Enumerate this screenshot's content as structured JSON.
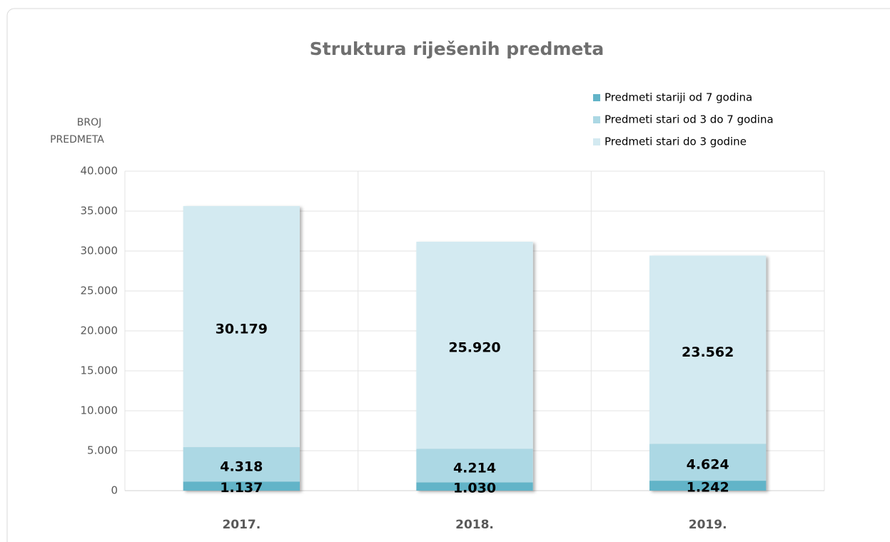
{
  "chart_data": {
    "type": "stacked_bar",
    "title": "Struktura riješenih  predmeta",
    "y_label": [
      "BROJ",
      "PREDMETA"
    ],
    "categories": [
      "2017.",
      "2018.",
      "2019."
    ],
    "series": [
      {
        "name": "Predmeti stariji od 7 godina",
        "color": "#62b4c8",
        "values": [
          1137,
          1030,
          1242
        ],
        "value_labels": [
          "1.137",
          "1.030",
          "1.242"
        ]
      },
      {
        "name": "Predmeti stari od 3 do 7 godina",
        "color": "#acd8e4",
        "values": [
          4318,
          4214,
          4624
        ],
        "value_labels": [
          "4.318",
          "4.214",
          "4.624"
        ]
      },
      {
        "name": "Predmeti stari do 3 godine",
        "color": "#d3eaf1",
        "values": [
          30179,
          25920,
          23562
        ],
        "value_labels": [
          "30.179",
          "25.920",
          "23.562"
        ]
      }
    ],
    "ylim": [
      0,
      40000
    ],
    "yticks": [
      0,
      {
        "value": 5000,
        "label": "5.000"
      },
      {
        "value": 10000,
        "label": "10.000"
      },
      {
        "value": 15000,
        "label": "15.000"
      },
      {
        "value": 20000,
        "label": "20.000"
      },
      {
        "value": 25000,
        "label": "25.000"
      },
      {
        "value": 30000,
        "label": "30.000"
      },
      {
        "value": 35000,
        "label": "35.000"
      },
      {
        "value": 40000,
        "label": "40.000"
      }
    ],
    "grid": true,
    "legend": "top-right"
  }
}
